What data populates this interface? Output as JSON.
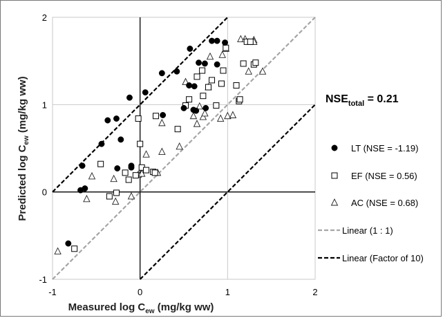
{
  "chart_data": {
    "type": "scatter",
    "xlabel": "Measured log C",
    "xlabel_sub": "ew",
    "xlabel_unit": " (mg/kg ww)",
    "ylabel": "Predicted log C",
    "ylabel_sub": "ew",
    "ylabel_unit": " (mg/kg ww)",
    "xlim": [
      -1,
      2
    ],
    "ylim": [
      -1,
      2
    ],
    "xticks": [
      "-1",
      "0",
      "1",
      "2"
    ],
    "yticks": [
      "-1",
      "0",
      "1",
      "2"
    ],
    "grid": true,
    "legend_position": "right",
    "annotation": {
      "main": "NSE",
      "sub": "total",
      "rest": " = 0.21"
    },
    "series": [
      {
        "name": "LT (NSE = -1.19)",
        "marker": "filled-circle",
        "color": "#000000",
        "points": [
          [
            -0.82,
            -0.59
          ],
          [
            -0.68,
            0.02
          ],
          [
            -0.63,
            0.04
          ],
          [
            -0.66,
            0.3
          ],
          [
            -0.44,
            0.55
          ],
          [
            -0.37,
            0.82
          ],
          [
            -0.27,
            0.84
          ],
          [
            -0.22,
            0.6
          ],
          [
            -0.26,
            0.27
          ],
          [
            -0.1,
            0.3
          ],
          [
            -0.1,
            0.28
          ],
          [
            -0.12,
            1.08
          ],
          [
            0.06,
            1.14
          ],
          [
            0.26,
            0.88
          ],
          [
            0.25,
            1.36
          ],
          [
            0.42,
            1.38
          ],
          [
            0.5,
            0.96
          ],
          [
            0.57,
            1.64
          ],
          [
            0.56,
            1.22
          ],
          [
            0.62,
            1.21
          ],
          [
            0.61,
            0.94
          ],
          [
            0.64,
            0.93
          ],
          [
            0.67,
            1.48
          ],
          [
            0.74,
            1.47
          ],
          [
            0.75,
            0.96
          ],
          [
            0.82,
            1.73
          ],
          [
            0.88,
            1.73
          ],
          [
            0.88,
            1.46
          ],
          [
            0.97,
            1.71
          ]
        ]
      },
      {
        "name": "EF (NSE = 0.56)",
        "marker": "open-square",
        "color": "#000000",
        "points": [
          [
            -0.75,
            -0.65
          ],
          [
            -0.45,
            0.32
          ],
          [
            -0.35,
            -0.05
          ],
          [
            -0.27,
            -0.01
          ],
          [
            -0.17,
            0.22
          ],
          [
            -0.13,
            0.14
          ],
          [
            -0.05,
            0.19
          ],
          [
            -0.02,
            0.84
          ],
          [
            0.0,
            0.55
          ],
          [
            0.02,
            0.28
          ],
          [
            0.07,
            0.25
          ],
          [
            0.15,
            0.23
          ],
          [
            0.17,
            0.22
          ],
          [
            0.18,
            0.87
          ],
          [
            0.43,
            0.72
          ],
          [
            0.52,
            0.99
          ],
          [
            0.56,
            1.06
          ],
          [
            0.65,
            1.32
          ],
          [
            0.71,
            1.39
          ],
          [
            0.72,
            1.1
          ],
          [
            0.78,
            1.2
          ],
          [
            0.82,
            1.28
          ],
          [
            0.87,
            0.99
          ],
          [
            0.93,
            1.24
          ],
          [
            0.95,
            1.39
          ],
          [
            0.98,
            1.65
          ],
          [
            1.1,
            1.22
          ],
          [
            1.13,
            1.04
          ],
          [
            1.14,
            1.06
          ],
          [
            1.18,
            1.47
          ],
          [
            1.22,
            1.72
          ],
          [
            1.26,
            1.72
          ],
          [
            1.3,
            1.46
          ],
          [
            1.32,
            1.48
          ]
        ]
      },
      {
        "name": "AC (NSE = 0.68)",
        "marker": "open-triangle",
        "color": "#000000",
        "points": [
          [
            -0.94,
            -0.68
          ],
          [
            -0.61,
            -0.08
          ],
          [
            -0.55,
            0.18
          ],
          [
            -0.3,
            0.15
          ],
          [
            -0.28,
            -0.11
          ],
          [
            -0.1,
            -0.05
          ],
          [
            -0.02,
            0.2
          ],
          [
            0.02,
            0.21
          ],
          [
            0.07,
            0.43
          ],
          [
            0.2,
            0.22
          ],
          [
            0.25,
            0.46
          ],
          [
            0.25,
            0.79
          ],
          [
            0.45,
            0.52
          ],
          [
            0.52,
            1.26
          ],
          [
            0.61,
            0.87
          ],
          [
            0.65,
            0.78
          ],
          [
            0.68,
            0.98
          ],
          [
            0.72,
            0.86
          ],
          [
            0.74,
            0.9
          ],
          [
            0.78,
            1.2
          ],
          [
            0.8,
            1.55
          ],
          [
            0.92,
            0.84
          ],
          [
            0.94,
            1.57
          ],
          [
            0.98,
            1.64
          ],
          [
            1.0,
            0.87
          ],
          [
            1.06,
            0.88
          ],
          [
            1.15,
            1.75
          ],
          [
            1.2,
            1.75
          ],
          [
            1.24,
            1.38
          ],
          [
            1.3,
            1.74
          ],
          [
            1.3,
            1.72
          ],
          [
            1.4,
            1.38
          ]
        ]
      },
      {
        "name": "Linear (1 : 1)",
        "line": "dashed",
        "color": "#a6a6a6",
        "x": [
          -1,
          2
        ],
        "y": [
          -1,
          2
        ]
      },
      {
        "name": "Linear (Factor of 10)",
        "line": "dashed",
        "color": "#000000",
        "segments": [
          {
            "x": [
              -1,
              1
            ],
            "y": [
              0,
              2
            ]
          },
          {
            "x": [
              0,
              2
            ],
            "y": [
              -1,
              1
            ]
          }
        ]
      }
    ]
  }
}
